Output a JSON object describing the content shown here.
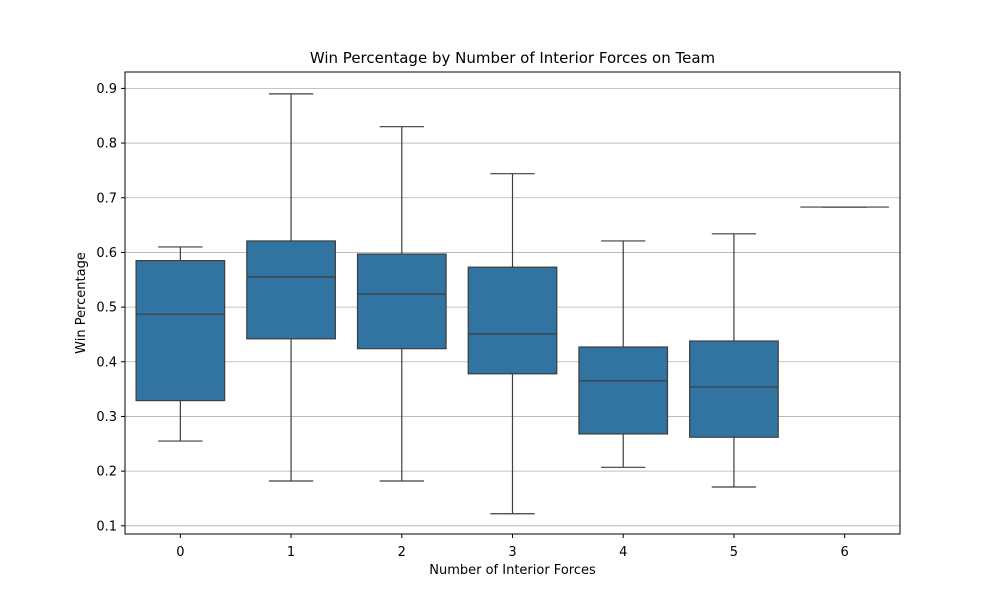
{
  "chart_data": {
    "type": "box",
    "title": "Win Percentage by Number of Interior Forces on Team",
    "xlabel": "Number of Interior Forces",
    "ylabel": "Win Percentage",
    "ylim": [
      0.085,
      0.93
    ],
    "yticks": [
      "0.1",
      "0.2",
      "0.3",
      "0.4",
      "0.5",
      "0.6",
      "0.7",
      "0.8",
      "0.9"
    ],
    "grid": "horizontal",
    "box_color": "#3274a1",
    "line_color": "#3d3d3d",
    "grid_color": "#b0b0b0",
    "categories": [
      "0",
      "1",
      "2",
      "3",
      "4",
      "5",
      "6"
    ],
    "boxes": [
      {
        "category": "0",
        "whislo": 0.255,
        "q1": 0.329,
        "med": 0.487,
        "q3": 0.585,
        "whishi": 0.61
      },
      {
        "category": "1",
        "whislo": 0.182,
        "q1": 0.442,
        "med": 0.555,
        "q3": 0.621,
        "whishi": 0.89
      },
      {
        "category": "2",
        "whislo": 0.182,
        "q1": 0.424,
        "med": 0.524,
        "q3": 0.597,
        "whishi": 0.83
      },
      {
        "category": "3",
        "whislo": 0.122,
        "q1": 0.378,
        "med": 0.451,
        "q3": 0.573,
        "whishi": 0.744
      },
      {
        "category": "4",
        "whislo": 0.207,
        "q1": 0.268,
        "med": 0.365,
        "q3": 0.427,
        "whishi": 0.621
      },
      {
        "category": "5",
        "whislo": 0.171,
        "q1": 0.262,
        "med": 0.354,
        "q3": 0.438,
        "whishi": 0.634
      },
      {
        "category": "6",
        "whislo": 0.683,
        "q1": 0.683,
        "med": 0.683,
        "q3": 0.683,
        "whishi": 0.683
      }
    ]
  }
}
